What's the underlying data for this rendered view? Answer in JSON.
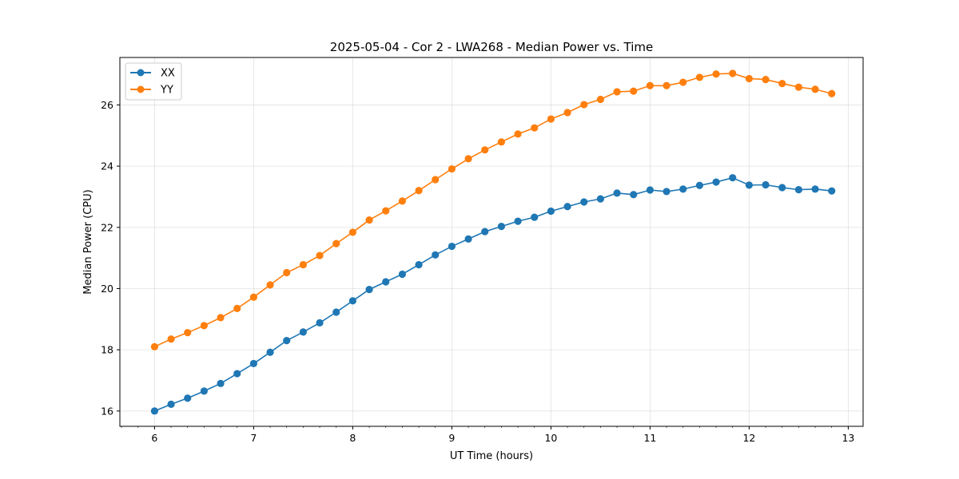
{
  "chart_data": {
    "type": "line",
    "title": "2025-05-04 - Cor 2 - LWA268 - Median Power vs. Time",
    "xlabel": "UT Time (hours)",
    "ylabel": "Median Power (CPU)",
    "xlim": [
      5.65,
      13.15
    ],
    "ylim": [
      15.5,
      27.55
    ],
    "xticks": [
      6,
      7,
      8,
      9,
      10,
      11,
      12,
      13
    ],
    "yticks": [
      16,
      18,
      20,
      22,
      24,
      26
    ],
    "grid": true,
    "legend_position": "top-left",
    "x": [
      6.0,
      6.1667,
      6.3333,
      6.5,
      6.6667,
      6.8333,
      7.0,
      7.1667,
      7.3333,
      7.5,
      7.6667,
      7.8333,
      8.0,
      8.1667,
      8.3333,
      8.5,
      8.6667,
      8.8333,
      9.0,
      9.1667,
      9.3333,
      9.5,
      9.6667,
      9.8333,
      10.0,
      10.1667,
      10.3333,
      10.5,
      10.6667,
      10.8333,
      11.0,
      11.1667,
      11.3333,
      11.5,
      11.6667,
      11.8333,
      12.0,
      12.1667,
      12.3333,
      12.5,
      12.6667,
      12.8333
    ],
    "series": [
      {
        "name": "XX",
        "color": "#1f77b4",
        "values": [
          16.0,
          16.22,
          16.42,
          16.65,
          16.9,
          17.22,
          17.55,
          17.92,
          18.3,
          18.58,
          18.88,
          19.23,
          19.6,
          19.97,
          20.22,
          20.47,
          20.78,
          21.1,
          21.38,
          21.62,
          21.86,
          22.03,
          22.2,
          22.33,
          22.53,
          22.68,
          22.83,
          22.93,
          23.12,
          23.07,
          23.22,
          23.17,
          23.25,
          23.37,
          23.48,
          23.62,
          23.38,
          23.39,
          23.3,
          23.23,
          23.25,
          23.19
        ]
      },
      {
        "name": "YY",
        "color": "#ff7f0e",
        "values": [
          18.1,
          18.35,
          18.56,
          18.79,
          19.05,
          19.35,
          19.72,
          20.12,
          20.52,
          20.78,
          21.08,
          21.47,
          21.84,
          22.24,
          22.54,
          22.86,
          23.2,
          23.56,
          23.91,
          24.24,
          24.53,
          24.79,
          25.05,
          25.25,
          25.54,
          25.75,
          26.01,
          26.18,
          26.43,
          26.45,
          26.63,
          26.63,
          26.74,
          26.9,
          27.01,
          27.03,
          26.86,
          26.83,
          26.7,
          26.58,
          26.51,
          26.37
        ]
      }
    ]
  }
}
